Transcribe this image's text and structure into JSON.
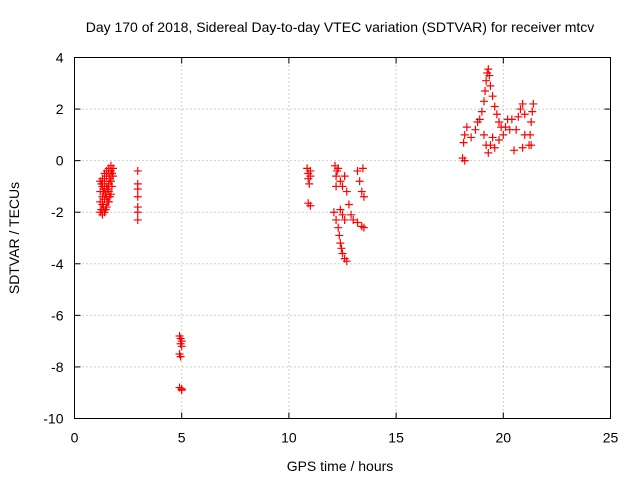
{
  "chart_data": {
    "type": "scatter",
    "title": "Day 170 of 2018, Sidereal Day-to-day VTEC variation (SDTVAR) for receiver mtcv",
    "xlabel": "GPS time / hours",
    "ylabel": "SDTVAR / TECUs",
    "xlim": [
      0,
      25
    ],
    "ylim": [
      -10,
      4
    ],
    "xticks": [
      0,
      5,
      10,
      15,
      20,
      25
    ],
    "xtick_labels": [
      "0",
      "5",
      "10",
      "15",
      "20",
      "25"
    ],
    "yticks": [
      -10,
      -8,
      -6,
      -4,
      -2,
      0,
      2,
      4
    ],
    "ytick_labels": [
      "-10",
      "-8",
      "-6",
      "-4",
      "-2",
      "0",
      "2",
      "4"
    ],
    "grid": true,
    "marker": "+",
    "color": "#ff0000",
    "series": [
      {
        "name": "SDTVAR",
        "points": [
          [
            1.2,
            -2.0
          ],
          [
            1.2,
            -1.6
          ],
          [
            1.2,
            -1.2
          ],
          [
            1.2,
            -0.8
          ],
          [
            1.25,
            -1.9
          ],
          [
            1.25,
            -0.9
          ],
          [
            1.3,
            -2.1
          ],
          [
            1.3,
            -1.7
          ],
          [
            1.3,
            -1.4
          ],
          [
            1.3,
            -1.0
          ],
          [
            1.3,
            -0.7
          ],
          [
            1.35,
            -1.8
          ],
          [
            1.35,
            -1.2
          ],
          [
            1.4,
            -2.0
          ],
          [
            1.4,
            -1.5
          ],
          [
            1.4,
            -1.1
          ],
          [
            1.4,
            -0.8
          ],
          [
            1.4,
            -0.5
          ],
          [
            1.45,
            -1.9
          ],
          [
            1.45,
            -1.3
          ],
          [
            1.5,
            -1.8
          ],
          [
            1.5,
            -1.4
          ],
          [
            1.5,
            -1.0
          ],
          [
            1.5,
            -0.6
          ],
          [
            1.5,
            -0.4
          ],
          [
            1.55,
            -1.6
          ],
          [
            1.55,
            -1.1
          ],
          [
            1.6,
            -1.6
          ],
          [
            1.6,
            -1.2
          ],
          [
            1.6,
            -0.9
          ],
          [
            1.6,
            -0.5
          ],
          [
            1.6,
            -0.3
          ],
          [
            1.65,
            -1.4
          ],
          [
            1.65,
            -0.7
          ],
          [
            1.7,
            -1.3
          ],
          [
            1.7,
            -0.8
          ],
          [
            1.7,
            -0.4
          ],
          [
            1.7,
            -0.2
          ],
          [
            1.75,
            -1.0
          ],
          [
            1.75,
            -0.5
          ],
          [
            1.8,
            -0.6
          ],
          [
            1.8,
            -0.3
          ],
          [
            2.95,
            -0.4
          ],
          [
            2.95,
            -0.9
          ],
          [
            2.95,
            -1.1
          ],
          [
            2.95,
            -1.4
          ],
          [
            2.95,
            -1.8
          ],
          [
            2.95,
            -2.0
          ],
          [
            2.95,
            -2.3
          ],
          [
            4.9,
            -6.8
          ],
          [
            4.95,
            -6.9
          ],
          [
            4.95,
            -7.1
          ],
          [
            5.0,
            -7.0
          ],
          [
            5.0,
            -7.2
          ],
          [
            4.9,
            -7.5
          ],
          [
            4.95,
            -7.6
          ],
          [
            4.9,
            -8.8
          ],
          [
            5.0,
            -8.9
          ],
          [
            5.0,
            -8.85
          ],
          [
            10.85,
            -0.3
          ],
          [
            10.9,
            -0.5
          ],
          [
            10.9,
            -0.7
          ],
          [
            10.95,
            -0.9
          ],
          [
            11.0,
            -0.6
          ],
          [
            11.0,
            -0.4
          ],
          [
            10.9,
            -1.65
          ],
          [
            11.0,
            -1.75
          ],
          [
            12.15,
            -0.2
          ],
          [
            12.2,
            -0.6
          ],
          [
            12.2,
            -1.0
          ],
          [
            12.25,
            -0.4
          ],
          [
            12.3,
            -0.3
          ],
          [
            12.1,
            -2.0
          ],
          [
            12.2,
            -2.3
          ],
          [
            12.3,
            -2.6
          ],
          [
            12.35,
            -2.9
          ],
          [
            12.4,
            -3.2
          ],
          [
            12.45,
            -3.4
          ],
          [
            12.5,
            -3.6
          ],
          [
            12.6,
            -3.8
          ],
          [
            12.7,
            -3.9
          ],
          [
            12.4,
            -1.9
          ],
          [
            12.5,
            -2.1
          ],
          [
            12.6,
            -2.3
          ],
          [
            12.4,
            -0.8
          ],
          [
            12.5,
            -1.0
          ],
          [
            12.6,
            -0.6
          ],
          [
            12.7,
            -1.2
          ],
          [
            12.8,
            -1.7
          ],
          [
            12.9,
            -2.1
          ],
          [
            13.0,
            -2.3
          ],
          [
            13.2,
            -2.4
          ],
          [
            13.4,
            -2.55
          ],
          [
            13.5,
            -2.6
          ],
          [
            13.2,
            -0.4
          ],
          [
            13.3,
            -0.8
          ],
          [
            13.4,
            -1.2
          ],
          [
            13.45,
            -0.3
          ],
          [
            13.5,
            -1.4
          ],
          [
            18.1,
            0.1
          ],
          [
            18.2,
            0.0
          ],
          [
            18.15,
            0.7
          ],
          [
            18.2,
            1.0
          ],
          [
            18.3,
            1.3
          ],
          [
            18.5,
            0.9
          ],
          [
            18.7,
            1.2
          ],
          [
            18.8,
            1.5
          ],
          [
            18.9,
            1.6
          ],
          [
            19.0,
            1.9
          ],
          [
            19.1,
            2.3
          ],
          [
            19.15,
            2.7
          ],
          [
            19.2,
            3.1
          ],
          [
            19.25,
            3.4
          ],
          [
            19.3,
            3.55
          ],
          [
            19.35,
            3.3
          ],
          [
            19.4,
            2.9
          ],
          [
            19.5,
            2.5
          ],
          [
            19.6,
            2.1
          ],
          [
            19.7,
            1.8
          ],
          [
            19.8,
            1.5
          ],
          [
            19.9,
            1.3
          ],
          [
            19.1,
            1.0
          ],
          [
            19.2,
            0.6
          ],
          [
            19.3,
            0.3
          ],
          [
            19.4,
            0.6
          ],
          [
            19.5,
            0.9
          ],
          [
            19.6,
            0.5
          ],
          [
            19.8,
            0.8
          ],
          [
            20.0,
            1.0
          ],
          [
            20.1,
            1.3
          ],
          [
            20.2,
            1.6
          ],
          [
            20.3,
            1.2
          ],
          [
            20.4,
            1.6
          ],
          [
            20.5,
            0.4
          ],
          [
            20.6,
            1.2
          ],
          [
            20.7,
            1.7
          ],
          [
            20.8,
            2.0
          ],
          [
            20.9,
            2.2
          ],
          [
            21.0,
            1.8
          ],
          [
            21.0,
            1.0
          ],
          [
            20.9,
            0.5
          ],
          [
            21.2,
            0.6
          ],
          [
            21.25,
            1.0
          ],
          [
            21.3,
            1.5
          ],
          [
            21.35,
            1.9
          ],
          [
            21.4,
            2.2
          ],
          [
            21.3,
            0.6
          ]
        ]
      }
    ]
  }
}
